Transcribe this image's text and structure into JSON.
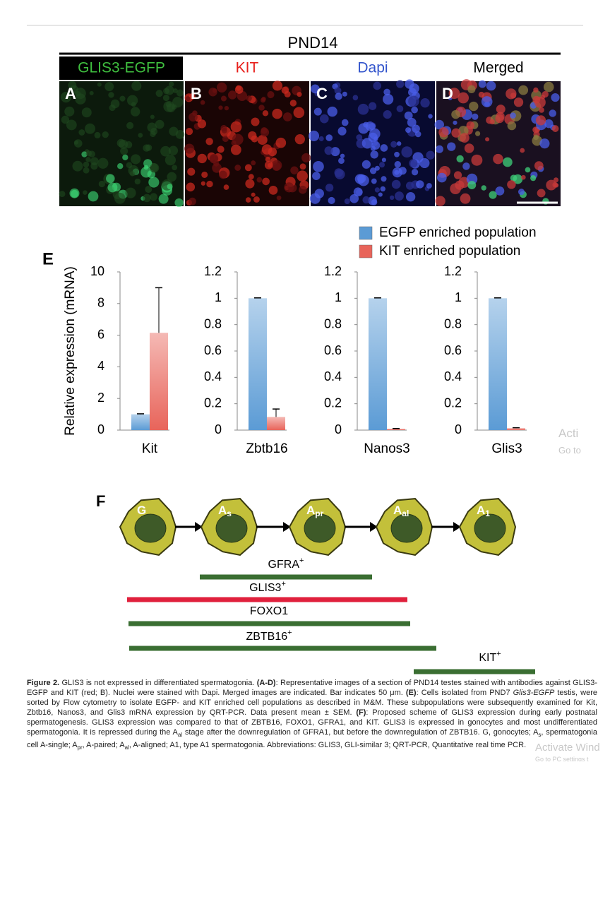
{
  "header": {
    "title": "PND14"
  },
  "panels": [
    {
      "letter": "A",
      "label": "GLIS3-EGFP"
    },
    {
      "letter": "B",
      "label": "KIT"
    },
    {
      "letter": "C",
      "label": "Dapi"
    },
    {
      "letter": "D",
      "label": "Merged"
    }
  ],
  "chart_data": {
    "type": "bar",
    "panel_label": "E",
    "ylabel": "Relative expression (mRNA)",
    "categories": [
      "Kit",
      "Zbtb16",
      "Nanos3",
      "Glis3"
    ],
    "axes": [
      {
        "ylim": [
          0,
          10
        ],
        "yticks": [
          0,
          2,
          4,
          6,
          8,
          10
        ]
      },
      {
        "ylim": [
          0,
          1.2
        ],
        "yticks": [
          0,
          0.2,
          0.4,
          0.6,
          0.8,
          1,
          1.2
        ]
      },
      {
        "ylim": [
          0,
          1.2
        ],
        "yticks": [
          0,
          0.2,
          0.4,
          0.6,
          0.8,
          1,
          1.2
        ]
      },
      {
        "ylim": [
          0,
          1.2
        ],
        "yticks": [
          0,
          0.2,
          0.4,
          0.6,
          0.8,
          1,
          1.2
        ]
      }
    ],
    "series": [
      {
        "name": "EGFP enriched population",
        "color": "#5b9bd5",
        "values": [
          1,
          1,
          1,
          1
        ],
        "errors": [
          0.03,
          0.003,
          0.003,
          0.003
        ]
      },
      {
        "name": "KIT enriched population",
        "color": "#e8645a",
        "values": [
          6.15,
          0.1,
          0.01,
          0.015
        ],
        "errors": [
          2.85,
          0.06,
          0.002,
          0.003
        ]
      }
    ]
  },
  "scheme": {
    "panel_label": "F",
    "cells": [
      {
        "main": "G",
        "sub": ""
      },
      {
        "main": "A",
        "sub": "s"
      },
      {
        "main": "A",
        "sub": "pr"
      },
      {
        "main": "A",
        "sub": "al"
      },
      {
        "main": "A",
        "sub": "1"
      }
    ],
    "markers": [
      {
        "name": "GFRA",
        "sup": "+"
      },
      {
        "name": "GLIS3",
        "sup": "+"
      },
      {
        "name": "FOXO1",
        "sup": ""
      },
      {
        "name": "ZBTB16",
        "sup": "+"
      },
      {
        "name": "KIT",
        "sup": "+"
      }
    ]
  },
  "caption": [
    {
      "t": "Figure 2.",
      "s": "b"
    },
    {
      "t": "   GLIS3 is not expressed in differentiated spermatogonia. "
    },
    {
      "t": "(A-D)",
      "s": "b"
    },
    {
      "t": ": Representative images of a section of PND14 testes stained with antibodies against GLIS3-EGFP and KIT (red; B). Nuclei were stained with Dapi. Merged images are indicated. Bar indicates 50 μm. "
    },
    {
      "t": "(E)",
      "s": "b"
    },
    {
      "t": ": Cells isolated from PND7 "
    },
    {
      "t": "Glis3-EGFP",
      "s": "i"
    },
    {
      "t": " testis, were sorted by Flow cytometry to isolate EGFP- and KIT enriched cell populations as described in M&M. These subpopulations were subsequently examined for Kit, Zbtb16, Nanos3, and Glis3 mRNA expression by QRT-PCR. Data present mean ± SEM. "
    },
    {
      "t": "(F)",
      "s": "b"
    },
    {
      "t": ": Proposed scheme of GLIS3 expression during early postnatal spermatogenesis. GLIS3 expression was compared to that of ZBTB16, FOXO1, GFRA1, and KIT. GLIS3 is expressed in gonocytes and most undifferentiated spermatogonia. It is repressed during the A"
    },
    {
      "t": "al",
      "s": "sub"
    },
    {
      "t": " stage after the downregulation of GFRA1, but before the downregulation of ZBTB16. G, gonocytes; A"
    },
    {
      "t": "s",
      "s": "sub"
    },
    {
      "t": ", spermatogonia cell A-single; A"
    },
    {
      "t": "pr",
      "s": "sub"
    },
    {
      "t": ", A-paired; A"
    },
    {
      "t": "al",
      "s": "sub"
    },
    {
      "t": ", A-aligned; A1, type A1 spermatogonia. Abbreviations: GLIS3, GLI-similar 3; QRT-PCR, Quantitative real time PCR."
    }
  ],
  "watermark": [
    "Acti",
    "Go to",
    "Activate Wind",
    "Go to PC settings t"
  ]
}
